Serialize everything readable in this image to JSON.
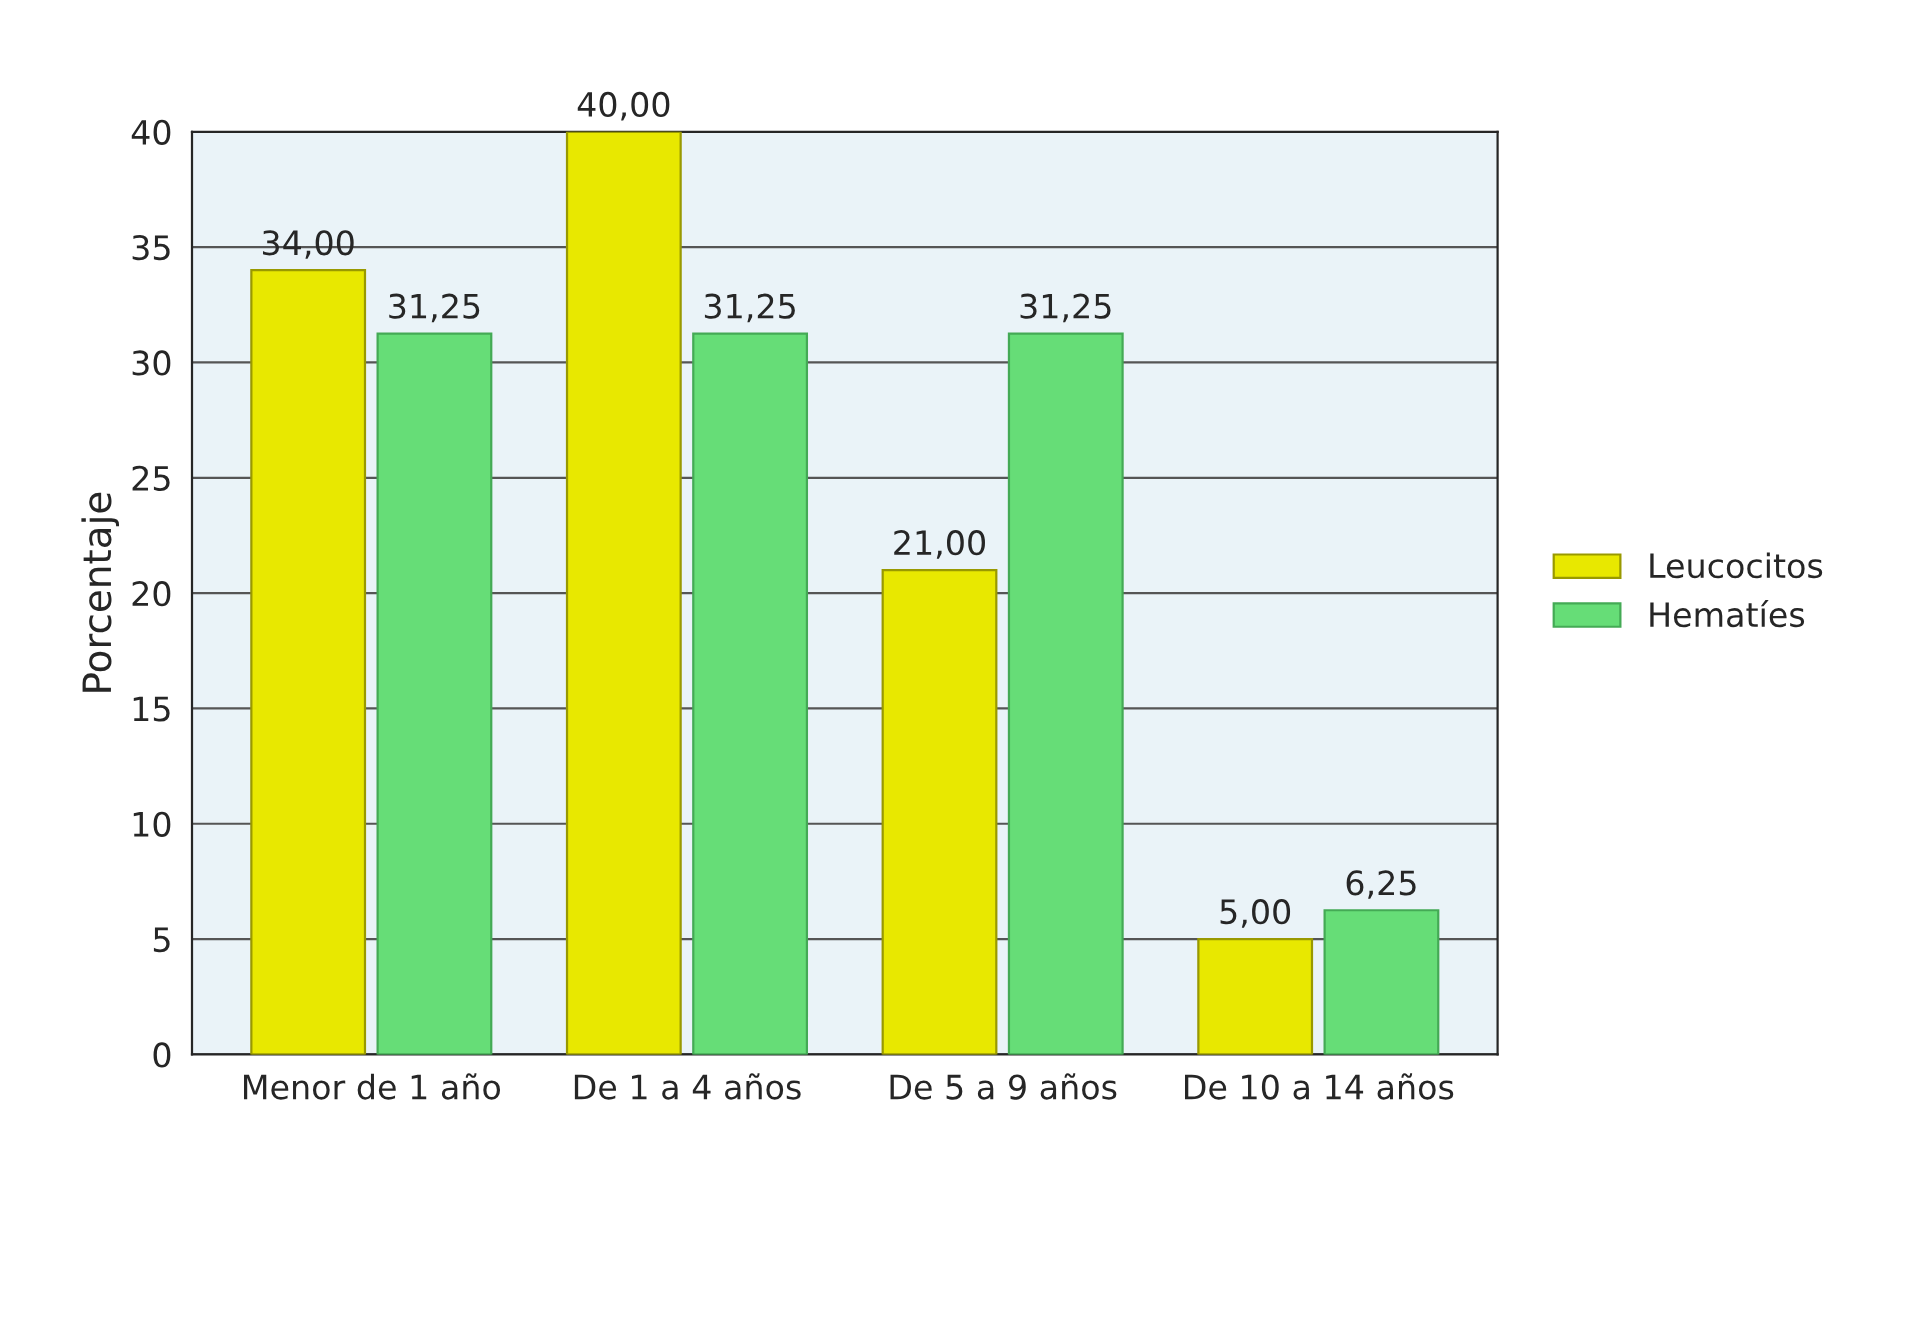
{
  "chart_data": {
    "type": "bar",
    "ylabel": "Porcentaje",
    "categories": [
      "Menor de 1 año",
      "De 1 a 4 años",
      "De 5 a 9 años",
      "De 10 a 14 años"
    ],
    "series": [
      {
        "name": "Leucocitos",
        "color": "#e8e800",
        "values": [
          34,
          40,
          21,
          5
        ],
        "value_labels": [
          "34,00",
          "40,00",
          "21,00",
          "5,00"
        ]
      },
      {
        "name": "Hematíes",
        "color": "#66dd77",
        "values": [
          31.25,
          31.25,
          31.25,
          6.25
        ],
        "value_labels": [
          "31,25",
          "31,25",
          "31,25",
          "6,25"
        ]
      }
    ],
    "ylim": [
      0,
      40
    ],
    "yticks": [
      0,
      5,
      10,
      15,
      20,
      25,
      30,
      35,
      40
    ],
    "grid": "y",
    "legend": "right"
  }
}
